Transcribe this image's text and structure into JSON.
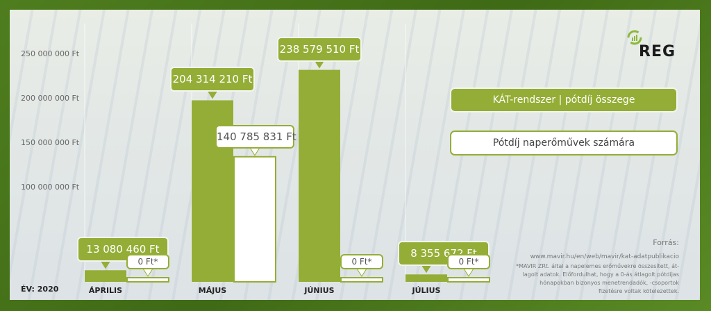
{
  "chart_data": {
    "type": "bar",
    "categories": [
      "ÁPRILIS",
      "MÁJUS",
      "JÚNIUS",
      "JÚLIUS"
    ],
    "series": [
      {
        "name": "KÁT-rendszer | pótdíj összege",
        "color": "#94ad36",
        "values": [
          13080460,
          204314210,
          238579510,
          8355672
        ],
        "labels": [
          "13 080 460 Ft",
          "204 314 210 Ft",
          "238 579 510 Ft",
          "8 355 672 Ft"
        ]
      },
      {
        "name": "Pótdíj naperőművek számára",
        "color": "#ffffff",
        "values": [
          0,
          140785831,
          0,
          0
        ],
        "labels": [
          "0 Ft*",
          "140 785 831 Ft",
          "0 Ft*",
          "0 Ft*"
        ]
      }
    ],
    "yticks": [
      "100 000 000 Ft",
      "150 000 000 Ft",
      "200 000 000 Ft",
      "250 000 000 Ft"
    ],
    "ytick_values": [
      100000000,
      150000000,
      200000000,
      250000000
    ],
    "ylim": [
      0,
      250000000
    ],
    "legend": "right"
  },
  "year_label": "ÉV: 2020",
  "logo": "REG",
  "source": {
    "title": "Forrás:",
    "url": "www.mavir.hu/en/web/mavir/kat-adatpublikacio",
    "footnote_lines": [
      "*MAVIR ZRt. által a napelemes erőművekre összesített, át-",
      "lagolt adatok. Előfordulhat, hogy a 0-ás átlagolt pótdíjas",
      "hónapokban bizonyos menetrendadók, -csoportok",
      "fizetésre voltak kötelezettek."
    ]
  }
}
